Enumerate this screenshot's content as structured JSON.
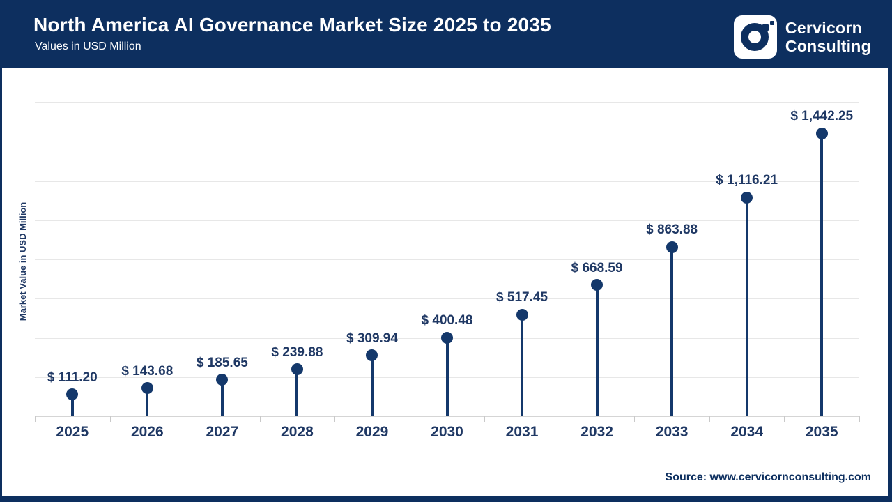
{
  "header": {
    "title": "North America AI Governance Market Size 2025 to 2035",
    "subtitle": "Values in USD Million",
    "brand": {
      "line1": "Cervicorn",
      "line2": "Consulting",
      "logo_icon": "cervicorn-c-icon"
    }
  },
  "footer": {
    "source": "Source: www.cervicornconsulting.com"
  },
  "colors": {
    "header_bg": "#0d2f5f",
    "frame_border": "#0d2f5f",
    "chart_accent": "#14386b",
    "label_text": "#1f3864",
    "gridline": "#e7e7e7",
    "axis_line": "#d5d5d5",
    "background": "#ffffff"
  },
  "chart_data": {
    "type": "bar",
    "variant": "lollipop",
    "title": "North America AI Governance Market Size 2025 to 2035",
    "subtitle": "Values in USD Million",
    "categories": [
      "2025",
      "2026",
      "2027",
      "2028",
      "2029",
      "2030",
      "2031",
      "2032",
      "2033",
      "2034",
      "2035"
    ],
    "values": [
      111.2,
      143.68,
      185.65,
      239.88,
      309.94,
      400.48,
      517.45,
      668.59,
      863.88,
      1116.21,
      1442.25
    ],
    "value_labels": [
      "$ 111.20",
      "$ 143.68",
      "$ 185.65",
      "$ 239.88",
      "$ 309.94",
      "$ 400.48",
      "$ 517.45",
      "$ 668.59",
      "$ 863.88",
      "$ 1,116.21",
      "$ 1,442.25"
    ],
    "xlabel": "",
    "ylabel": "Market Value in USD Million",
    "ylim": [
      0,
      1600
    ],
    "grid": true,
    "gridline_interval": 200,
    "y_tick_labels_visible": false,
    "legend": false
  }
}
